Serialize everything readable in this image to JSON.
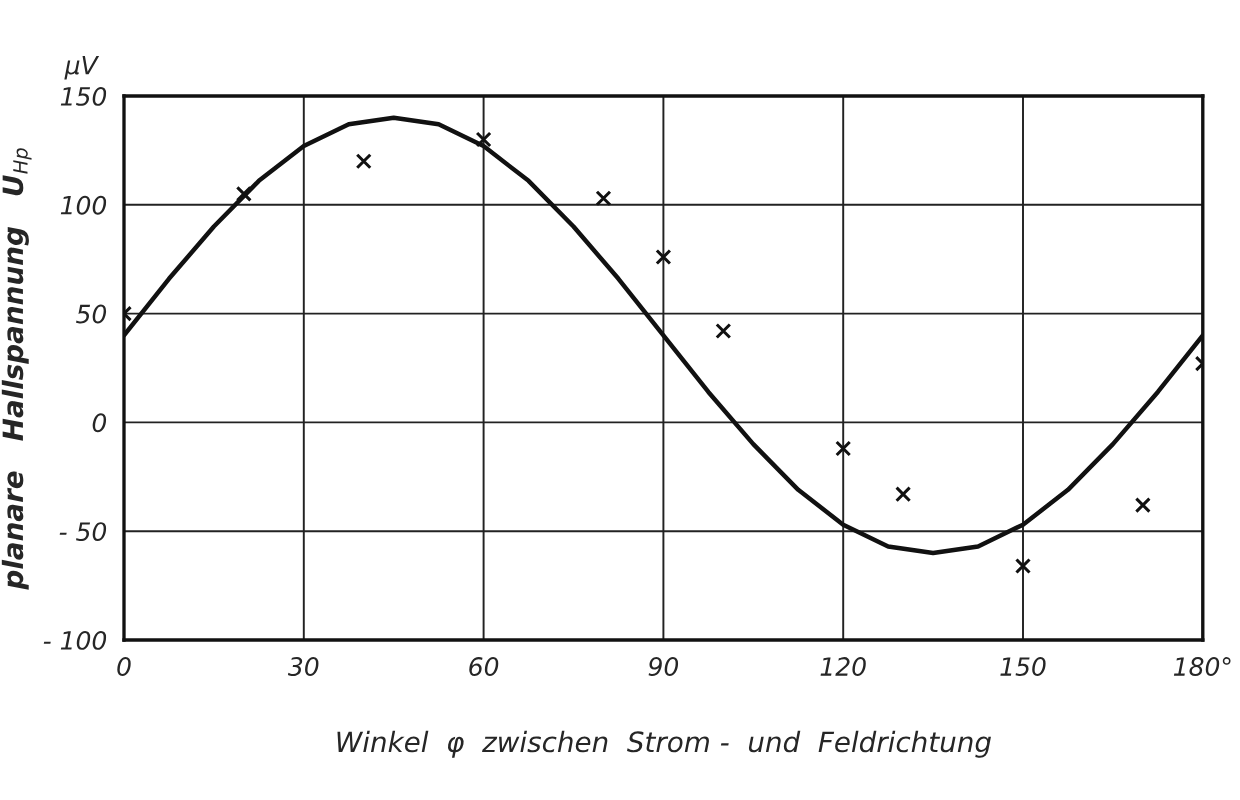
{
  "chart_data": {
    "type": "line",
    "xlabel": "Winkel  φ  zwischen  Strom -  und  Feldrichtung",
    "ylabel": "planare   Hallspannung   U$_{Hp}$",
    "annotations": [
      "μV"
    ],
    "series": [
      {
        "color": "#111111",
        "marker": "none",
        "line_style": "solid",
        "x": [
          0,
          7.5,
          15,
          22.5,
          30,
          37.5,
          45,
          52.5,
          60,
          67.5,
          75,
          82.5,
          90,
          97.5,
          105,
          112.5,
          120,
          127.5,
          135,
          142.5,
          150,
          157.5,
          165,
          172.5,
          180
        ],
        "values": [
          40,
          66,
          90,
          111,
          127,
          137,
          140,
          137,
          127,
          111,
          90,
          66,
          40,
          14,
          -10,
          -31,
          -47,
          -57,
          -60,
          -57,
          -47,
          -31,
          -10,
          14,
          40
        ]
      },
      {
        "type": "scatter",
        "color": "#111111",
        "marker": "cross",
        "x": [
          0,
          20,
          40,
          60,
          80,
          90,
          100,
          120,
          130,
          150,
          170,
          180
        ],
        "values": [
          50,
          105,
          120,
          130,
          103,
          76,
          42,
          -12,
          -33,
          -66,
          -38,
          27
        ]
      }
    ],
    "xlim": [
      0,
      180
    ],
    "xticks": [
      0,
      30,
      60,
      90,
      120,
      150,
      {
        "value": 180,
        "label": "180°"
      }
    ],
    "ylim": [
      -100,
      150
    ],
    "yticks": [
      {
        "value": -100,
        "label": "- 100"
      },
      {
        "value": -50,
        "label": "- 50"
      },
      0,
      50,
      100,
      150
    ],
    "grid": true
  }
}
